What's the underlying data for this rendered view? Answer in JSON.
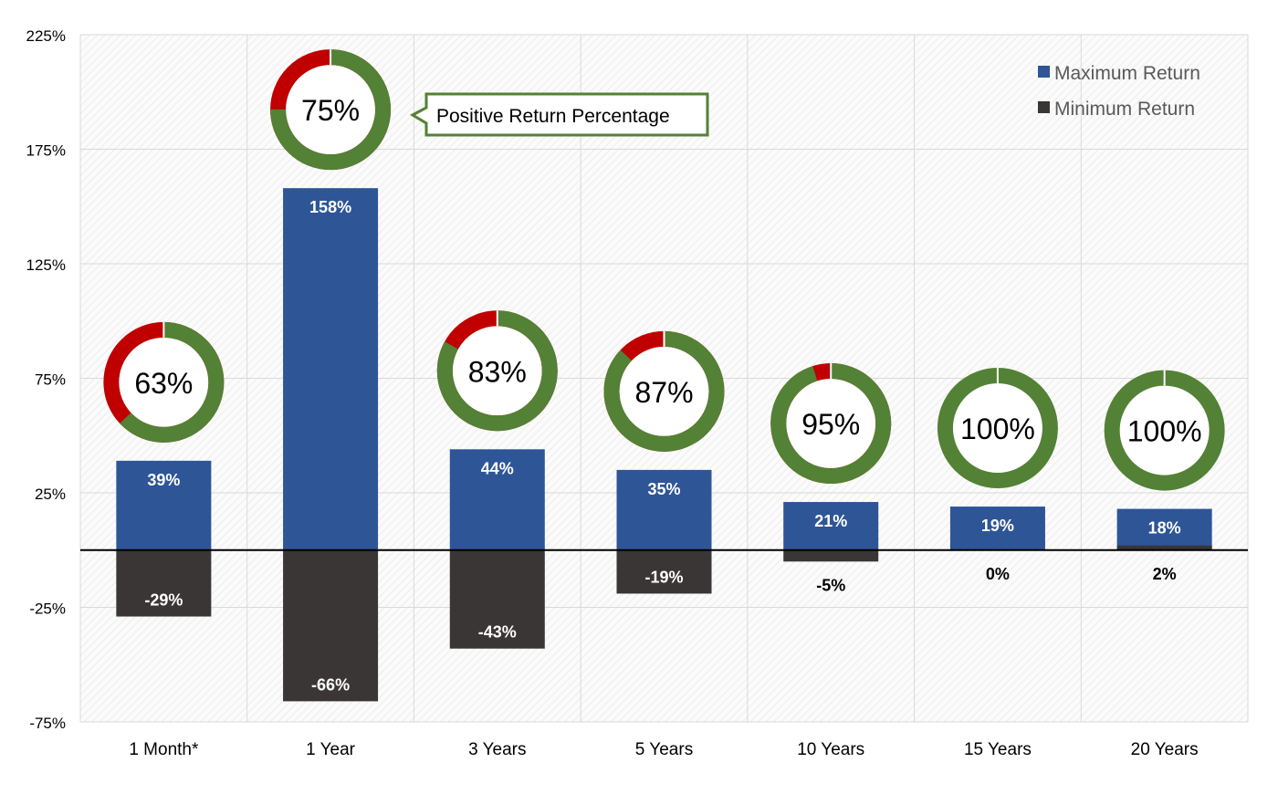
{
  "chart_data": {
    "type": "bar",
    "categories": [
      "1 Month*",
      "1 Year",
      "3 Years",
      "5 Years",
      "10 Years",
      "15 Years",
      "20 Years"
    ],
    "series": [
      {
        "name": "Maximum Return",
        "values": [
          39,
          158,
          44,
          35,
          21,
          19,
          18
        ],
        "labels": [
          "39%",
          "158%",
          "44%",
          "35%",
          "21%",
          "19%",
          "18%"
        ],
        "color": "#2e5596"
      },
      {
        "name": "Minimum Return",
        "values": [
          -29,
          -66,
          -43,
          -19,
          -5,
          0,
          2
        ],
        "labels": [
          "-29%",
          "-66%",
          "-43%",
          "-19%",
          "-5%",
          "0%",
          "2%"
        ],
        "color": "#3a3636"
      }
    ],
    "positive_return_percentage": {
      "values": [
        63,
        75,
        83,
        87,
        95,
        100,
        100
      ],
      "labels": [
        "63%",
        "75%",
        "83%",
        "87%",
        "95%",
        "100%",
        "100%"
      ],
      "positive_color": "#538135",
      "negative_color": "#c00000"
    },
    "annotation": "Positive Return Percentage",
    "ylim": [
      -75,
      225
    ],
    "yticks": [
      -75,
      -25,
      25,
      75,
      125,
      175,
      225
    ],
    "ytick_labels": [
      "-75%",
      "-25%",
      "25%",
      "75%",
      "125%",
      "175%",
      "225%"
    ],
    "grid": true,
    "legend_position": "top-right",
    "title": "",
    "xlabel": "",
    "ylabel": ""
  }
}
